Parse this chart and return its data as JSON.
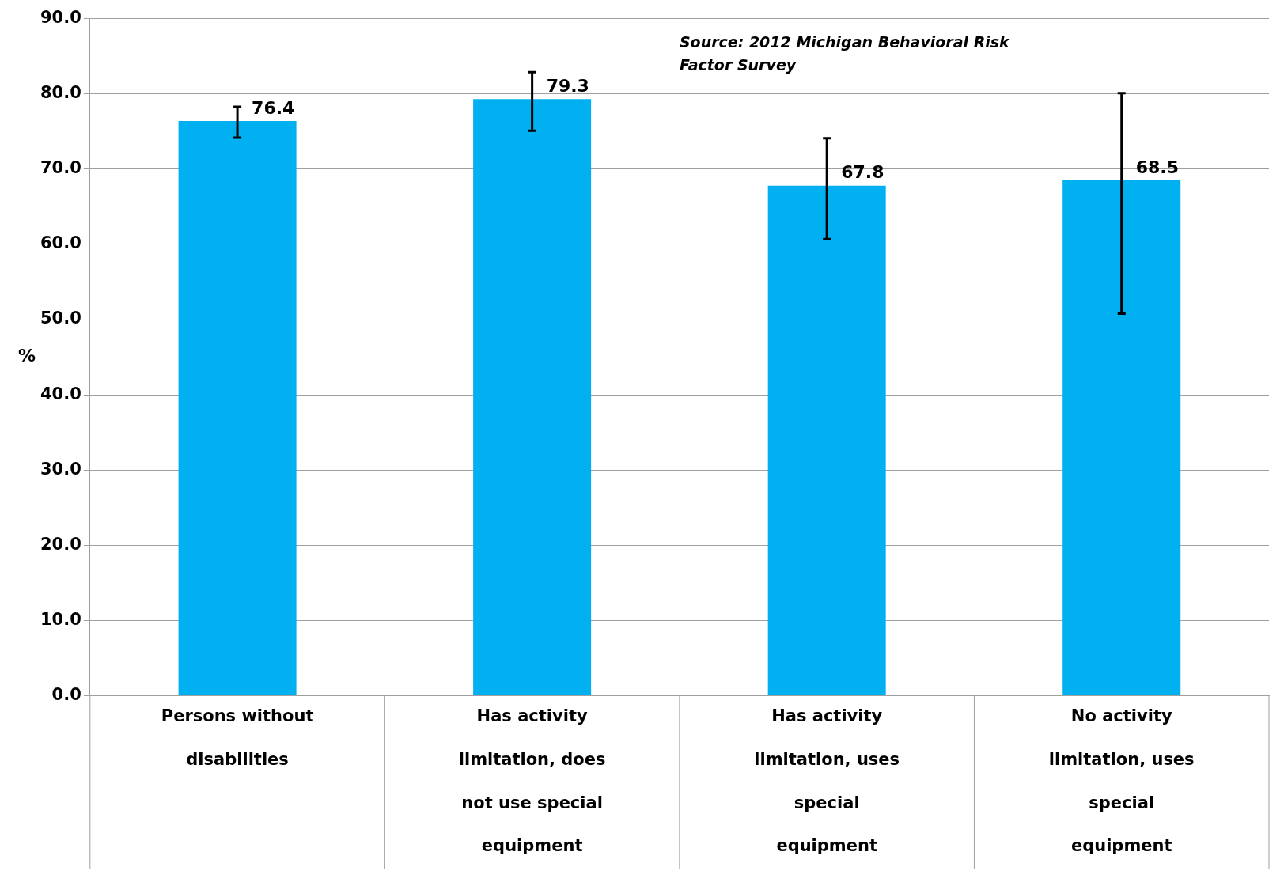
{
  "chart_data": {
    "type": "bar",
    "ylabel": "%",
    "categories": [
      "Persons without disabilities",
      "Has activity limitation, does not use special equipment",
      "Has activity limitation, uses special equipment",
      "No activity limitation, uses special equipment"
    ],
    "values": [
      76.4,
      79.3,
      67.8,
      68.5
    ],
    "color": "#00b0f0",
    "errors": [
      [
        74.2,
        78.3
      ],
      [
        75.1,
        82.9
      ],
      [
        60.7,
        74.1
      ],
      [
        50.8,
        80.1
      ]
    ],
    "data_labels": true,
    "ylim": [
      0,
      90
    ],
    "yticks": [
      {
        "value": 0,
        "label": "0.0"
      },
      {
        "value": 10,
        "label": "10.0"
      },
      {
        "value": 20,
        "label": "20.0"
      },
      {
        "value": 30,
        "label": "30.0"
      },
      {
        "value": 40,
        "label": "40.0"
      },
      {
        "value": 50,
        "label": "50.0"
      },
      {
        "value": 60,
        "label": "60.0"
      },
      {
        "value": 70,
        "label": "70.0"
      },
      {
        "value": 80,
        "label": "80.0"
      },
      {
        "value": 90,
        "label": "90.0"
      }
    ],
    "grid": "y",
    "annotations": [
      {
        "text": "Source: 2012 Michigan Behavioral Risk Factor Survey"
      }
    ]
  }
}
